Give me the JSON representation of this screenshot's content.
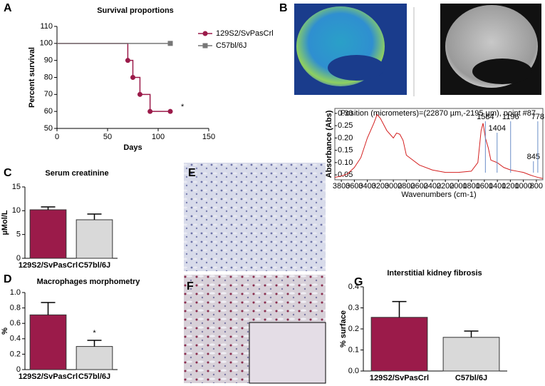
{
  "panel_labels": [
    "A",
    "B",
    "C",
    "D",
    "E",
    "F",
    "G"
  ],
  "chart_data": [
    {
      "type": "step",
      "title": "Survival proportions",
      "x_label": "Days",
      "y_label": "Percent survival",
      "xlim": [
        0,
        150
      ],
      "xticks": [
        0,
        50,
        100,
        150
      ],
      "ylim": [
        50,
        110
      ],
      "yticks": [
        50,
        60,
        70,
        80,
        90,
        100,
        110
      ],
      "series": [
        {
          "name": "129S2/SvPasCrl",
          "color": "#9b1b4a",
          "x": [
            0,
            70,
            75,
            82,
            92,
            112
          ],
          "values": [
            100,
            90,
            80,
            70,
            60,
            60
          ]
        },
        {
          "name": "C57bl/6J",
          "color": "#777777",
          "x": [
            0,
            112
          ],
          "values": [
            100,
            100
          ]
        }
      ],
      "annotation": "*"
    },
    {
      "type": "bar",
      "title": "Serum creatinine",
      "y_label": "µMol/L",
      "categories": [
        "129S2/SvPasCrl",
        "C57bl/6J"
      ],
      "values": [
        10.2,
        8.1
      ],
      "errors": [
        0.6,
        1.2
      ],
      "colors": [
        "#9b1b4a",
        "#d9d9d9"
      ],
      "ylim": [
        0,
        15
      ],
      "yticks": [
        0,
        5,
        10,
        15
      ]
    },
    {
      "type": "bar",
      "title": "Macrophages morphometry",
      "y_label": "%",
      "categories": [
        "129S2/SvPasCrl",
        "C57bl/6J"
      ],
      "values": [
        0.71,
        0.3
      ],
      "errors": [
        0.16,
        0.08
      ],
      "colors": [
        "#9b1b4a",
        "#d9d9d9"
      ],
      "ylim": [
        0,
        1
      ],
      "yticks": [
        0,
        0.2,
        0.4,
        0.6,
        0.8,
        {
          "value": 1,
          "label": "1.0"
        }
      ],
      "annotation": "*"
    },
    {
      "type": "bar",
      "title": "Interstitial kidney fibrosis",
      "y_label": "% surface",
      "categories": [
        "129S2/SvPasCrl",
        "C57bl/6J"
      ],
      "values": [
        0.255,
        0.16
      ],
      "errors": [
        0.075,
        0.03
      ],
      "colors": [
        "#9b1b4a",
        "#d9d9d9"
      ],
      "ylim": [
        0,
        0.4
      ],
      "yticks": [
        {
          "value": 0,
          "label": "0.0"
        },
        0.1,
        0.2,
        0.3,
        0.4
      ]
    },
    {
      "type": "line",
      "title": "Position (micrometers)=(22870 µm,-2195 µm), point #87",
      "x_label": "Wavenumbers (cm-1)",
      "y_label": "Absorbance (Abs)",
      "color": "#d42020",
      "x": [
        3900,
        3800,
        3700,
        3600,
        3500,
        3400,
        3300,
        3250,
        3200,
        3100,
        3000,
        2950,
        2900,
        2850,
        2800,
        2600,
        2400,
        2200,
        2000,
        1800,
        1700,
        1650,
        1620,
        1584,
        1540,
        1500,
        1404,
        1300,
        1196,
        1100,
        1000,
        900,
        845,
        778,
        700
      ],
      "values": [
        0.04,
        0.045,
        0.055,
        0.08,
        0.12,
        0.2,
        0.26,
        0.295,
        0.28,
        0.23,
        0.2,
        0.22,
        0.215,
        0.19,
        0.13,
        0.09,
        0.07,
        0.06,
        0.06,
        0.065,
        0.1,
        0.23,
        0.26,
        0.2,
        0.16,
        0.11,
        0.1,
        0.08,
        0.07,
        0.065,
        0.06,
        0.05,
        0.045,
        0.04,
        0.035
      ],
      "xlim": [
        3900,
        700
      ],
      "xticks": [
        3800,
        3600,
        3400,
        3200,
        3000,
        2800,
        2600,
        2400,
        2200,
        2000,
        1800,
        1600,
        1400,
        1200,
        1000,
        800
      ],
      "ylim": [
        0.03,
        0.32
      ],
      "yticks": [
        0.05,
        {
          "value": 0.1,
          "label": "0.10"
        },
        0.15,
        {
          "value": 0.2,
          "label": "0.20"
        },
        0.25,
        {
          "value": 0.3,
          "label": "0.30"
        }
      ],
      "peak_labels": [
        1584,
        1404,
        1196,
        845,
        778
      ]
    }
  ]
}
